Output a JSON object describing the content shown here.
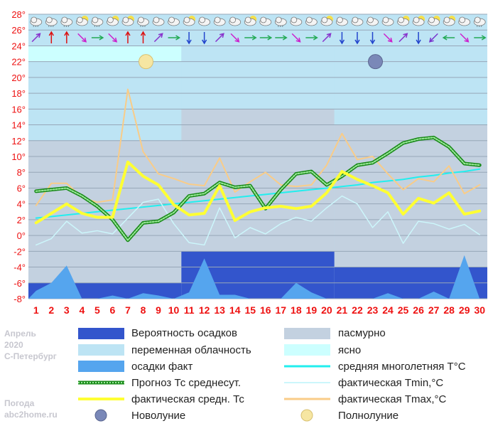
{
  "side_text": {
    "month": "Апрель",
    "year": "2020",
    "city": "С-Петербург",
    "site_title": "Погода",
    "site": "abc2home.ru"
  },
  "colors": {
    "precip_prob": "#3355cc",
    "variable_cloud": "#bde4f4",
    "precip_fact": "#55a5ee",
    "overcast": "#c3d1e0",
    "clear": "#ccffff",
    "climate_mean": "#22eeee",
    "tmin": "#ccf6fb",
    "tmax": "#f9cc88",
    "forecast_mean": "#1a8a1a",
    "fact_mean": "#ffff33",
    "day_labels": "#ee1111",
    "axis_labels": "#ee1111"
  },
  "legend": {
    "precip_prob": "Вероятность осадков",
    "variable_cloud": "переменная облачность",
    "precip_fact": "осадки факт",
    "forecast_mean": "Прогноз Тс среднесут.",
    "fact_mean": "фактическая средн. Тс",
    "new_moon": "Новолуние",
    "overcast": "пасмурно",
    "clear": "ясно",
    "climate_mean": "средняя многолетняя Т°С",
    "tmin": "фактическая Tmin,°С",
    "tmax": "фактическая Tmax,°С",
    "full_moon": "Полнолуние"
  },
  "chart_data": {
    "type": "line",
    "title": "",
    "xlabel": "",
    "ylabel": "",
    "x": [
      1,
      2,
      3,
      4,
      5,
      6,
      7,
      8,
      9,
      10,
      11,
      12,
      13,
      14,
      15,
      16,
      17,
      18,
      19,
      20,
      21,
      22,
      23,
      24,
      25,
      26,
      27,
      28,
      29,
      30
    ],
    "y_ticks": [
      "-8",
      "-6",
      "-4",
      "-2",
      "0",
      "2",
      "4",
      "6",
      "8",
      "10",
      "12",
      "14",
      "16",
      "18",
      "20",
      "22",
      "24",
      "26",
      "28"
    ],
    "ylim": [
      -8,
      28
    ],
    "grid": true,
    "cloud_background": [
      {
        "from": 0.5,
        "to": 10.5,
        "bands": [
          {
            "y0": -6,
            "y1": 12,
            "type": "overcast"
          },
          {
            "y0": 12,
            "y1": 22,
            "type": "variable_cloud"
          },
          {
            "y0": 22,
            "y1": 24,
            "type": "clear"
          }
        ]
      },
      {
        "from": 10.5,
        "to": 20.5,
        "bands": [
          {
            "y0": -2,
            "y1": 16,
            "type": "overcast"
          },
          {
            "y0": 16,
            "y1": 24,
            "type": "variable_cloud"
          }
        ]
      },
      {
        "from": 20.5,
        "to": 30.5,
        "bands": [
          {
            "y0": -4,
            "y1": 14,
            "type": "overcast"
          },
          {
            "y0": 14,
            "y1": 24,
            "type": "variable_cloud"
          }
        ]
      }
    ],
    "precip_probability_steps": [
      {
        "from": 0.5,
        "to": 10.5,
        "value": -6
      },
      {
        "from": 10.5,
        "to": 20.5,
        "value": -2
      },
      {
        "from": 20.5,
        "to": 30.5,
        "value": -4
      }
    ],
    "series": [
      {
        "name": "осадки факт",
        "kind": "area",
        "values": [
          -7,
          -6,
          -3.8,
          -8,
          -8,
          -7.6,
          -8,
          -7.3,
          -7.6,
          -8,
          -7.2,
          -2.9,
          -7.5,
          -7.5,
          -8,
          -8,
          -8,
          -6,
          -7.2,
          -8,
          -8,
          -8,
          -8,
          -7.3,
          -8,
          -8,
          -7.1,
          -8,
          -2.5,
          -8
        ]
      },
      {
        "name": "средняя многолетняя Т°С",
        "kind": "line",
        "values": [
          2.2,
          2.4,
          2.6,
          2.8,
          3.0,
          3.2,
          3.4,
          3.6,
          3.8,
          4.0,
          4.2,
          4.4,
          4.6,
          4.8,
          5.0,
          5.2,
          5.4,
          5.6,
          5.8,
          6.0,
          6.2,
          6.4,
          6.7,
          6.9,
          7.1,
          7.4,
          7.6,
          7.9,
          8.1,
          8.4
        ]
      },
      {
        "name": "фактическая Tmin,°С",
        "kind": "line",
        "values": [
          -1.2,
          -0.4,
          1.8,
          0.3,
          0.6,
          0.2,
          2.2,
          4.2,
          4.6,
          1.5,
          -0.9,
          -1.2,
          3.5,
          -0.3,
          1.0,
          0.2,
          1.5,
          2.3,
          1.8,
          3.5,
          5.0,
          4.0,
          1.0,
          3.0,
          -1.0,
          1.8,
          1.5,
          0.8,
          1.4,
          0.1
        ]
      },
      {
        "name": "фактическая Tmax,°С",
        "kind": "line",
        "values": [
          3.8,
          6.6,
          6.6,
          4.8,
          4.2,
          4.5,
          18.5,
          10.6,
          7.8,
          7.2,
          6.5,
          6.3,
          9.8,
          5.5,
          6.8,
          8.0,
          6.4,
          6.2,
          6.4,
          8.9,
          12.9,
          9.6,
          10.0,
          7.8,
          5.8,
          7.2,
          6.8,
          8.8,
          5.3,
          6.4
        ]
      },
      {
        "name": "Прогноз Тс среднесут.",
        "kind": "line",
        "values": [
          5.6,
          5.8,
          6.0,
          5.0,
          3.7,
          2.0,
          -0.6,
          1.6,
          1.8,
          2.9,
          5.0,
          5.3,
          6.7,
          6.1,
          6.3,
          3.4,
          5.8,
          7.8,
          8.1,
          6.4,
          7.5,
          8.9,
          9.2,
          10.4,
          11.7,
          12.2,
          12.4,
          11.2,
          9.1,
          8.9
        ]
      },
      {
        "name": "фактическая средн. Тс",
        "kind": "line",
        "values": [
          1.6,
          2.8,
          4.0,
          2.8,
          2.3,
          2.3,
          9.3,
          7.5,
          6.4,
          3.9,
          2.6,
          2.8,
          6.3,
          1.9,
          3.0,
          3.5,
          3.7,
          3.4,
          3.7,
          5.4,
          8.1,
          7.1,
          6.3,
          5.4,
          2.7,
          4.7,
          4.1,
          5.4,
          2.7,
          3.1
        ]
      }
    ],
    "moon_phases": [
      {
        "day": 8,
        "phase": "Полнолуние"
      },
      {
        "day": 23,
        "phase": "Новолуние"
      }
    ],
    "weather_icons": [
      "cloud-snow",
      "cloud-snow",
      "cloud-rain",
      "cloud-sun",
      "cloud-rain",
      "cloud-sun",
      "sun-cloud",
      "cloud-snow",
      "cloud",
      "cloud",
      "sun-cloud",
      "cloud",
      "cloud",
      "cloud",
      "sun-cloud",
      "cloud",
      "cloud-snow",
      "cloud",
      "cloud",
      "cloud-sun",
      "cloud",
      "cloud",
      "cloud",
      "cloud",
      "cloud-sun",
      "cloud-sun",
      "cloud-sun",
      "cloud-sun",
      "cloud",
      "cloud-rain"
    ],
    "wind_directions": [
      "NE",
      "N",
      "N",
      "SE",
      "E",
      "SE",
      "N",
      "N",
      "NE",
      "E",
      "S",
      "S",
      "NE",
      "SE",
      "E",
      "E",
      "E",
      "SE",
      "E",
      "NE",
      "S",
      "S",
      "S",
      "SE",
      "NE",
      "S",
      "SW",
      "W",
      "SE",
      "E"
    ]
  }
}
